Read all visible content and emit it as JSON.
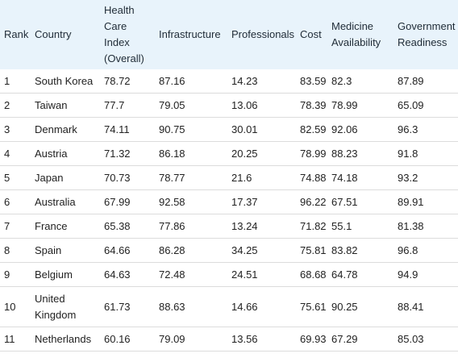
{
  "table": {
    "headers": {
      "rank": "Rank",
      "country": "Country",
      "index": "Health Care Index (Overall)",
      "infrastructure": "Infrastructure",
      "professionals": "Professionals",
      "cost": "Cost",
      "medicine": "Medicine Availability",
      "government": "Government Readiness"
    },
    "rows": [
      {
        "rank": "1",
        "country": "South Korea",
        "index": "78.72",
        "infrastructure": "87.16",
        "professionals": "14.23",
        "cost": "83.59",
        "medicine": "82.3",
        "government": "87.89"
      },
      {
        "rank": "2",
        "country": "Taiwan",
        "index": "77.7",
        "infrastructure": "79.05",
        "professionals": "13.06",
        "cost": "78.39",
        "medicine": "78.99",
        "government": "65.09"
      },
      {
        "rank": "3",
        "country": "Denmark",
        "index": "74.11",
        "infrastructure": "90.75",
        "professionals": "30.01",
        "cost": "82.59",
        "medicine": "92.06",
        "government": "96.3"
      },
      {
        "rank": "4",
        "country": "Austria",
        "index": "71.32",
        "infrastructure": "86.18",
        "professionals": "20.25",
        "cost": "78.99",
        "medicine": "88.23",
        "government": "91.8"
      },
      {
        "rank": "5",
        "country": "Japan",
        "index": "70.73",
        "infrastructure": "78.77",
        "professionals": "21.6",
        "cost": "74.88",
        "medicine": "74.18",
        "government": "93.2"
      },
      {
        "rank": "6",
        "country": "Australia",
        "index": "67.99",
        "infrastructure": "92.58",
        "professionals": "17.37",
        "cost": "96.22",
        "medicine": "67.51",
        "government": "89.91"
      },
      {
        "rank": "7",
        "country": "France",
        "index": "65.38",
        "infrastructure": "77.86",
        "professionals": "13.24",
        "cost": "71.82",
        "medicine": "55.1",
        "government": "81.38"
      },
      {
        "rank": "8",
        "country": "Spain",
        "index": "64.66",
        "infrastructure": "86.28",
        "professionals": "34.25",
        "cost": "75.81",
        "medicine": "83.82",
        "government": "96.8"
      },
      {
        "rank": "9",
        "country": "Belgium",
        "index": "64.63",
        "infrastructure": "72.48",
        "professionals": "24.51",
        "cost": "68.68",
        "medicine": "64.78",
        "government": "94.9"
      },
      {
        "rank": "10",
        "country": "United Kingdom",
        "index": "61.73",
        "infrastructure": "88.63",
        "professionals": "14.66",
        "cost": "75.61",
        "medicine": "90.25",
        "government": "88.41"
      },
      {
        "rank": "11",
        "country": "Netherlands",
        "index": "60.16",
        "infrastructure": "79.09",
        "professionals": "13.56",
        "cost": "69.93",
        "medicine": "67.29",
        "government": "85.03"
      }
    ]
  },
  "colors": {
    "header_background": "#e8f3fb",
    "row_divider": "#dcdcdc",
    "text": "#222222"
  }
}
